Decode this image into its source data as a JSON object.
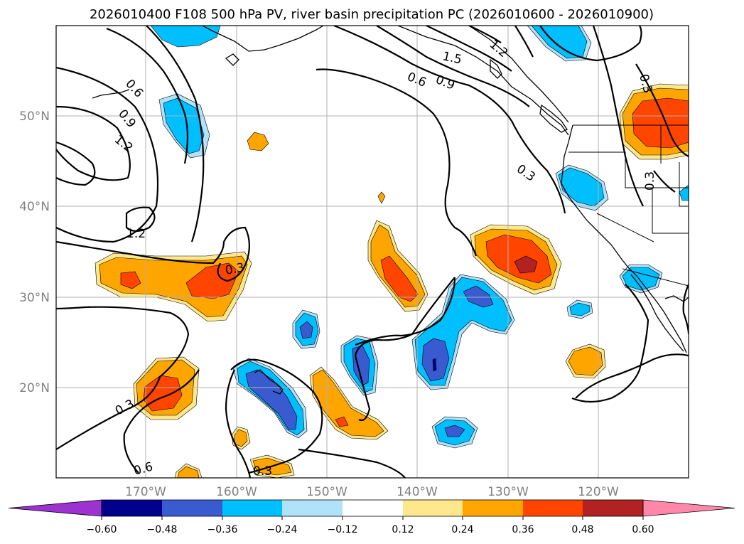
{
  "title": "2026010400 F108 500 hPa PV, river basin precipitation PC (2026010600 - 2026010900)",
  "axes": {
    "lat_labels": [
      "50°N",
      "40°N",
      "30°N",
      "20°N"
    ],
    "lon_labels": [
      "170°W",
      "160°W",
      "150°W",
      "140°W",
      "130°W",
      "120°W"
    ]
  },
  "contour_labels": [
    "0.6",
    "0.9",
    "1.2",
    "1.2",
    "0.3",
    "1.5",
    "1.2",
    "0.6",
    "0.9",
    "0.3",
    "0.3",
    "0.3",
    "0.3",
    "0.6",
    "0.3"
  ],
  "colorbar": {
    "colors": [
      "#9c32d0",
      "#00008b",
      "#3a5bcf",
      "#00bfff",
      "#b0e2fa",
      "#ffffff",
      "#ffe88c",
      "#ffa500",
      "#ff4500",
      "#b22222",
      "#ff88aa"
    ],
    "tick_labels": [
      "−0.60",
      "−0.48",
      "−0.36",
      "−0.24",
      "−0.12",
      "0.12",
      "0.24",
      "0.36",
      "0.48",
      "0.60"
    ]
  },
  "colors": {
    "frame": "#000000",
    "grid": "#b0b0b0",
    "contour": "#000000",
    "tick_text": "#808080"
  }
}
